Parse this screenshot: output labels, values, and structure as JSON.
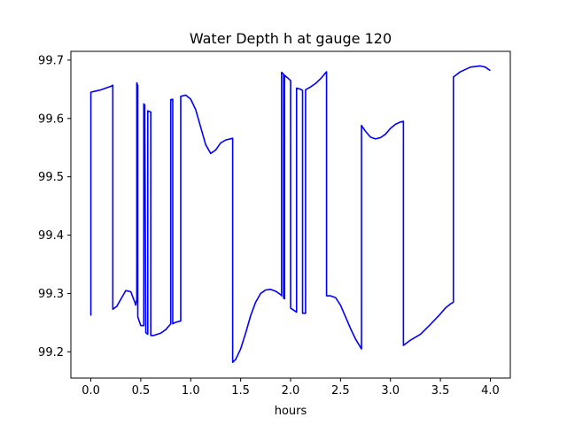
{
  "chart_data": {
    "type": "line",
    "title": "Water Depth h at gauge 120",
    "xlabel": "hours",
    "ylabel": "",
    "xlim": [
      -0.2,
      4.2
    ],
    "ylim": [
      99.155,
      99.715
    ],
    "xticks": [
      0.0,
      0.5,
      1.0,
      1.5,
      2.0,
      2.5,
      3.0,
      3.5,
      4.0
    ],
    "xtick_labels": [
      "0.0",
      "0.5",
      "1.0",
      "1.5",
      "2.0",
      "2.5",
      "3.0",
      "3.5",
      "4.0"
    ],
    "yticks": [
      99.2,
      99.3,
      99.4,
      99.5,
      99.6,
      99.7
    ],
    "ytick_labels": [
      "99.2",
      "99.3",
      "99.4",
      "99.5",
      "99.6",
      "99.7"
    ],
    "grid": false,
    "series": [
      {
        "color": "#0000ff",
        "x": [
          0.0,
          0.0,
          0.05,
          0.1,
          0.15,
          0.2,
          0.22,
          0.22,
          0.26,
          0.3,
          0.35,
          0.4,
          0.44,
          0.45,
          0.46,
          0.46,
          0.47,
          0.47,
          0.5,
          0.53,
          0.53,
          0.54,
          0.55,
          0.57,
          0.57,
          0.6,
          0.6,
          0.63,
          0.7,
          0.75,
          0.8,
          0.8,
          0.82,
          0.82,
          0.84,
          0.9,
          0.9,
          0.95,
          1.0,
          1.05,
          1.1,
          1.15,
          1.2,
          1.25,
          1.3,
          1.35,
          1.42,
          1.42,
          1.45,
          1.5,
          1.55,
          1.6,
          1.65,
          1.7,
          1.75,
          1.8,
          1.85,
          1.9,
          1.91,
          1.91,
          1.93,
          1.93,
          1.94,
          1.94,
          2.0,
          2.0,
          2.06,
          2.06,
          2.1,
          2.12,
          2.12,
          2.15,
          2.15,
          2.2,
          2.25,
          2.3,
          2.36,
          2.36,
          2.4,
          2.45,
          2.5,
          2.55,
          2.6,
          2.65,
          2.71,
          2.71,
          2.75,
          2.8,
          2.85,
          2.9,
          2.95,
          3.0,
          3.05,
          3.1,
          3.13,
          3.13,
          3.2,
          3.3,
          3.4,
          3.5,
          3.55,
          3.6,
          3.63,
          3.63,
          3.7,
          3.8,
          3.9,
          3.95,
          4.0
        ],
        "y": [
          99.262,
          99.645,
          99.647,
          99.649,
          99.652,
          99.655,
          99.657,
          99.273,
          99.278,
          99.29,
          99.305,
          99.303,
          99.285,
          99.28,
          99.29,
          99.661,
          99.656,
          99.26,
          99.245,
          99.245,
          99.625,
          99.623,
          99.233,
          99.23,
          99.613,
          99.611,
          99.228,
          99.228,
          99.232,
          99.238,
          99.248,
          99.632,
          99.633,
          99.248,
          99.25,
          99.253,
          99.638,
          99.64,
          99.633,
          99.615,
          99.585,
          99.555,
          99.54,
          99.546,
          99.558,
          99.563,
          99.566,
          99.182,
          99.187,
          99.205,
          99.232,
          99.262,
          99.285,
          99.3,
          99.306,
          99.307,
          99.304,
          99.298,
          99.296,
          99.679,
          99.676,
          99.292,
          99.291,
          99.674,
          99.665,
          99.275,
          99.268,
          99.652,
          99.65,
          99.648,
          99.266,
          99.266,
          99.649,
          99.654,
          99.66,
          99.668,
          99.68,
          99.296,
          99.296,
          99.293,
          99.28,
          99.26,
          99.24,
          99.222,
          99.205,
          99.588,
          99.578,
          99.568,
          99.565,
          99.567,
          99.573,
          99.583,
          99.59,
          99.594,
          99.595,
          99.211,
          99.22,
          99.23,
          99.247,
          99.265,
          99.275,
          99.282,
          99.285,
          99.671,
          99.68,
          99.688,
          99.69,
          99.688,
          99.682
        ]
      }
    ]
  }
}
